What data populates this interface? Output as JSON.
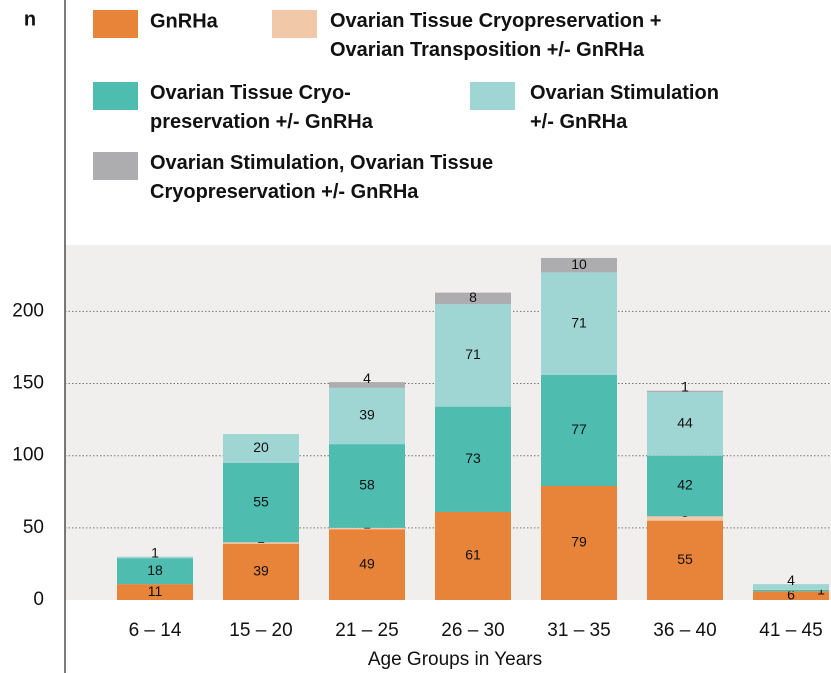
{
  "chart_data": {
    "type": "stacked_bar",
    "y_label": "n",
    "x_label": "Age Groups in Years",
    "categories": [
      "6 – 14",
      "15 – 20",
      "21 – 25",
      "26 – 30",
      "31 – 35",
      "36 – 40",
      "41 – 45"
    ],
    "series": [
      {
        "name": "GnRHa",
        "color": "#e8833a",
        "values": [
          11,
          39,
          49,
          61,
          79,
          55,
          6
        ]
      },
      {
        "name": "Ovarian Tissue Cryopreservation +\nOvarian Transposition +/- GnRHa",
        "color": "#f1c8a8",
        "values": [
          0,
          1,
          1,
          0,
          0,
          3,
          0
        ]
      },
      {
        "name": "Ovarian Tissue Cryo-\npreservation +/- GnRHa",
        "color": "#4fbcb0",
        "values": [
          18,
          55,
          58,
          73,
          77,
          42,
          1
        ]
      },
      {
        "name": "Ovarian Stimulation\n+/- GnRHa",
        "color": "#9fd6d3",
        "values": [
          1,
          20,
          39,
          71,
          71,
          44,
          4
        ]
      },
      {
        "name": "Ovarian Stimulation, Ovarian Tissue\nCryopreservation +/- GnRHa",
        "color": "#adadaf",
        "values": [
          0,
          0,
          4,
          8,
          10,
          1,
          0
        ]
      }
    ],
    "ylim": [
      0,
      246
    ],
    "yticks": [
      0,
      50,
      100,
      150,
      200
    ],
    "grid": true
  }
}
